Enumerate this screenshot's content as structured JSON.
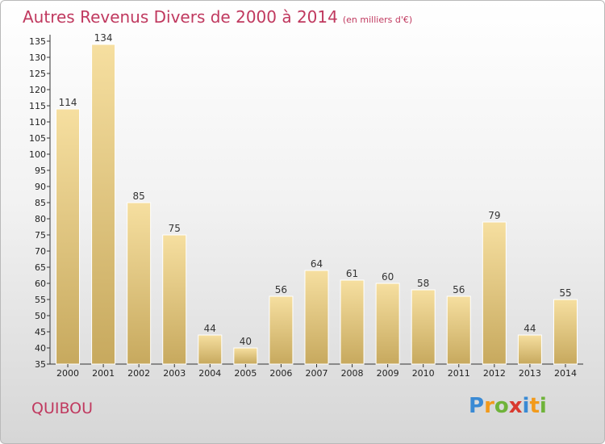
{
  "chart_data": {
    "type": "bar",
    "title": "Autres Revenus Divers de 2000 à 2014",
    "subtitle": "(en milliers d'€)",
    "categories": [
      "2000",
      "2001",
      "2002",
      "2003",
      "2004",
      "2005",
      "2006",
      "2007",
      "2008",
      "2009",
      "2010",
      "2011",
      "2012",
      "2013",
      "2014"
    ],
    "values": [
      114,
      134,
      85,
      75,
      44,
      40,
      56,
      64,
      61,
      60,
      58,
      56,
      79,
      44,
      55
    ],
    "ylim": [
      35,
      135
    ],
    "ytick_step": 5,
    "grid": false,
    "bar_color_light": "#f6dfa0",
    "bar_color_dark": "#c7a95e",
    "label_color": "#c0395f"
  },
  "place": "QUIBOU",
  "logo": {
    "letters": [
      "P",
      "r",
      "o",
      "x",
      "i",
      "t",
      "i"
    ],
    "colors": [
      "#3a8ad4",
      "#f29a1b",
      "#6fb33a",
      "#d93a2f",
      "#3a8ad4",
      "#f29a1b",
      "#6fb33a"
    ]
  }
}
